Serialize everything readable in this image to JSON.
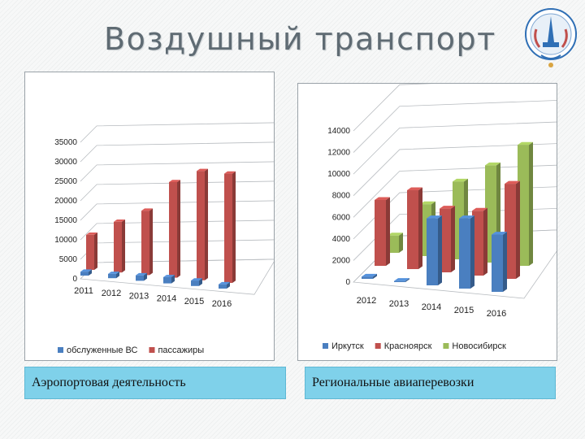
{
  "page": {
    "title": "Воздушный транспорт"
  },
  "captions": {
    "left": "Аэропортовая деятельность",
    "right": "Региональные авиаперевозки"
  },
  "colors": {
    "blue": "#4a7fc0",
    "red": "#c0504d",
    "green": "#9bbb59"
  },
  "chart_data": [
    {
      "type": "bar",
      "3d": true,
      "categories": [
        "2011",
        "2012",
        "2013",
        "2014",
        "2015",
        "2016"
      ],
      "series": [
        {
          "name": "обслуженные ВС",
          "color": "#4a7fc0",
          "values": [
            1000,
            1100,
            1400,
            1600,
            1400,
            1100
          ]
        },
        {
          "name": "пассажиры",
          "color": "#c0504d",
          "values": [
            9000,
            13000,
            16500,
            24500,
            28000,
            28000
          ]
        }
      ],
      "yticks": [
        0,
        5000,
        10000,
        15000,
        20000,
        25000,
        30000,
        35000
      ],
      "ylim": [
        0,
        35000
      ],
      "grid": true,
      "legend": "bottom"
    },
    {
      "type": "bar",
      "3d": true,
      "categories": [
        "2012",
        "2013",
        "2014",
        "2015",
        "2016"
      ],
      "series": [
        {
          "name": "Иркутск",
          "color": "#4a7fc0",
          "values": [
            200,
            100,
            6200,
            6500,
            5300
          ]
        },
        {
          "name": "Красноярск",
          "color": "#c0504d",
          "values": [
            6100,
            7300,
            5900,
            6000,
            8800
          ]
        },
        {
          "name": "Новосибирск",
          "color": "#9bbb59",
          "values": [
            1600,
            4800,
            7200,
            9000,
            11200
          ]
        }
      ],
      "yticks": [
        0,
        2000,
        4000,
        6000,
        8000,
        10000,
        12000,
        14000
      ],
      "ylim": [
        0,
        14000
      ],
      "grid": true,
      "legend": "bottom"
    }
  ]
}
